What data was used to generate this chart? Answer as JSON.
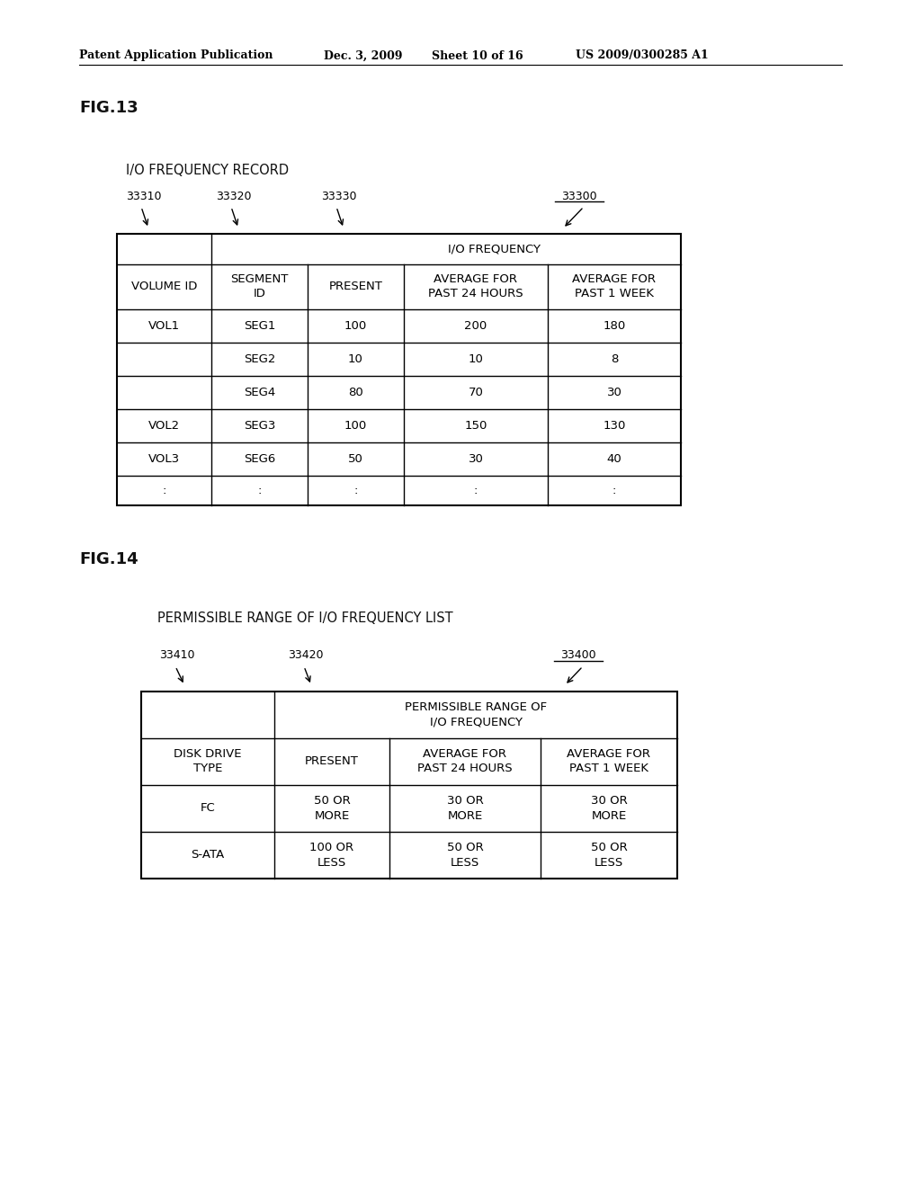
{
  "bg_color": "#ffffff",
  "header_line1": "Patent Application Publication",
  "header_line2": "Dec. 3, 2009",
  "header_line3": "Sheet 10 of 16",
  "header_line4": "US 2009/0300285 A1",
  "fig13_label": "FIG.13",
  "fig14_label": "FIG.14",
  "table1_title": "I/O FREQUENCY RECORD",
  "table1_ref_main": "33300",
  "table1_refs": [
    "33310",
    "33320",
    "33330"
  ],
  "table1_rows": [
    [
      "VOL1",
      "SEG1",
      "100",
      "200",
      "180"
    ],
    [
      "",
      "SEG2",
      "10",
      "10",
      "8"
    ],
    [
      "",
      "SEG4",
      "80",
      "70",
      "30"
    ],
    [
      "VOL2",
      "SEG3",
      "100",
      "150",
      "130"
    ],
    [
      "VOL3",
      "SEG6",
      "50",
      "30",
      "40"
    ],
    [
      ":",
      ":",
      ":",
      ":",
      ":"
    ]
  ],
  "table2_title": "PERMISSIBLE RANGE OF I/O FREQUENCY LIST",
  "table2_ref_main": "33400",
  "table2_refs": [
    "33410",
    "33420"
  ],
  "table2_rows": [
    [
      "FC",
      "50 OR\nMORE",
      "30 OR\nMORE",
      "30 OR\nMORE"
    ],
    [
      "S-ATA",
      "100 OR\nLESS",
      "50 OR\nLESS",
      "50 OR\nLESS"
    ]
  ]
}
